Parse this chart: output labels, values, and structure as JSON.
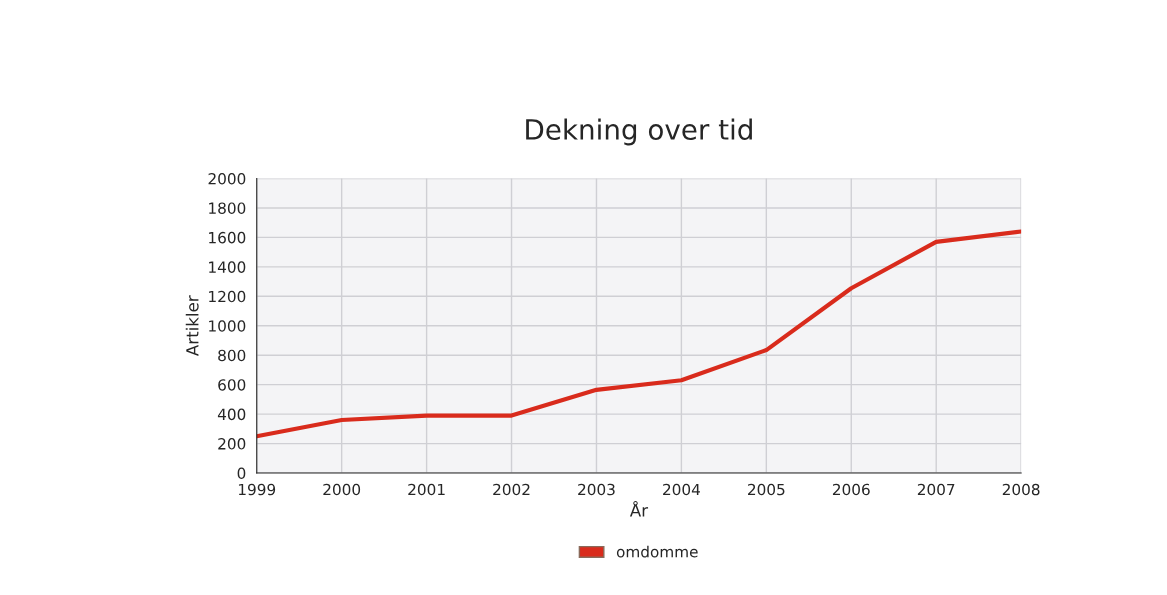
{
  "chart_data": {
    "type": "line",
    "title": "Dekning over tid",
    "xlabel": "År",
    "ylabel": "Artikler",
    "x": [
      1999,
      2000,
      2001,
      2002,
      2003,
      2004,
      2005,
      2006,
      2007,
      2008
    ],
    "series": [
      {
        "name": "omdomme",
        "color": "#d92b1c",
        "values": [
          250,
          360,
          390,
          390,
          565,
          630,
          835,
          1255,
          1570,
          1640
        ]
      }
    ],
    "xlim": [
      1999,
      2008
    ],
    "xticks": [
      1999,
      2000,
      2001,
      2002,
      2003,
      2004,
      2005,
      2006,
      2007,
      2008
    ],
    "ylim": [
      0,
      2000
    ],
    "yticks": [
      0,
      200,
      400,
      600,
      800,
      1000,
      1200,
      1400,
      1600,
      1800,
      2000
    ],
    "grid": true,
    "legend": "bottom",
    "marker": "none",
    "line_style": "solid"
  }
}
